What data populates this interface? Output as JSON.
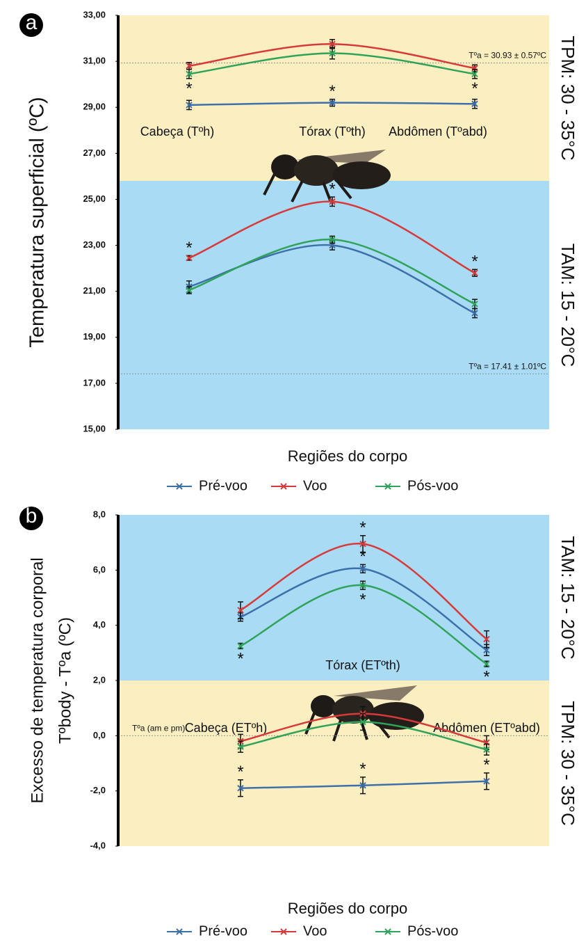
{
  "chart_data": [
    {
      "type": "line",
      "panel_label": "a",
      "ylabel": [
        "Temperatura superficial (ºC)"
      ],
      "xlabel": "Regiões do corpo",
      "categories": [
        "Cabeça (Tºh)",
        "Tórax (Tºth)",
        "Abdômen (Tºabd)"
      ],
      "ylim": [
        15,
        33
      ],
      "yticks": [
        {
          "value": 15,
          "label": "15,00"
        },
        {
          "value": 17,
          "label": "17,00"
        },
        {
          "value": 19,
          "label": "19,00"
        },
        {
          "value": 21,
          "label": "21,00"
        },
        {
          "value": 23,
          "label": "23,00"
        },
        {
          "value": 25,
          "label": "25,00"
        },
        {
          "value": 27,
          "label": "27,00"
        },
        {
          "value": 29,
          "label": "29,00"
        },
        {
          "value": 31,
          "label": "31,00"
        },
        {
          "value": 33,
          "label": "33,00"
        }
      ],
      "bands": [
        {
          "label": "TPM: 30 - 35°C",
          "range": [
            25.8,
            33
          ],
          "color": "#fbefc1"
        },
        {
          "label": "TAM: 15 - 20°C",
          "range": [
            15,
            25.8
          ],
          "color": "#a9dbf4"
        }
      ],
      "reference_lines": [
        {
          "label": "Tºa = 30.93 ± 0.57ºC",
          "value": 30.93
        },
        {
          "label": "Tºa = 17.41 ± 1.01ºC",
          "value": 17.41
        }
      ],
      "legend": "bottom",
      "series": [
        {
          "name": "Pré-voo",
          "color": "#3d6faa",
          "groups": [
            {
              "values": [
                29.1,
                29.2,
                29.15
              ],
              "errors": [
                0.2,
                0.15,
                0.2
              ],
              "sig": [
                null,
                "*",
                null
              ]
            },
            {
              "values": [
                21.2,
                23.0,
                20.05
              ],
              "errors": [
                0.25,
                0.2,
                0.2
              ],
              "sig": [
                null,
                null,
                null
              ]
            }
          ]
        },
        {
          "name": "Voo",
          "color": "#d63a3a",
          "groups": [
            {
              "values": [
                30.8,
                31.75,
                30.7
              ],
              "errors": [
                0.15,
                0.2,
                0.15
              ],
              "sig": [
                null,
                null,
                null
              ]
            },
            {
              "values": [
                22.45,
                24.9,
                21.8
              ],
              "errors": [
                0.1,
                0.2,
                0.15
              ],
              "sig": [
                "*",
                "*",
                "*"
              ]
            }
          ]
        },
        {
          "name": "Pós-voo",
          "color": "#2fa35a",
          "groups": [
            {
              "values": [
                30.45,
                31.35,
                30.45
              ],
              "errors": [
                0.2,
                0.25,
                0.2
              ],
              "sig": [
                "*",
                null,
                "*"
              ]
            },
            {
              "values": [
                21.05,
                23.25,
                20.45
              ],
              "errors": [
                0.15,
                0.15,
                0.2
              ],
              "sig": [
                null,
                null,
                null
              ]
            }
          ]
        }
      ]
    },
    {
      "type": "line",
      "panel_label": "b",
      "ylabel": [
        "Excesso de temperatura corporal",
        "Tºbody - Tºa (ºC)"
      ],
      "xlabel": "Regiões do corpo",
      "categories": [
        "Cabeça (ETºh)",
        "Tórax (ETºth)",
        "Abdômen (ETºabd)"
      ],
      "ylim": [
        -4,
        8
      ],
      "yticks": [
        {
          "value": -4,
          "label": "-4,0"
        },
        {
          "value": -2,
          "label": "-2,0"
        },
        {
          "value": 0,
          "label": "0,0"
        },
        {
          "value": 2,
          "label": "2,0"
        },
        {
          "value": 4,
          "label": "4,0"
        },
        {
          "value": 6,
          "label": "6,0"
        },
        {
          "value": 8,
          "label": "8,0"
        }
      ],
      "bands": [
        {
          "label": "TAM: 15 - 20°C",
          "range": [
            2,
            8
          ],
          "color": "#a9dbf4"
        },
        {
          "label": "TPM: 30 - 35°C",
          "range": [
            -4,
            2
          ],
          "color": "#fbefc1"
        }
      ],
      "reference_lines": [
        {
          "label": "Tºa (am e pm)",
          "value": 0
        }
      ],
      "legend": "bottom",
      "series": [
        {
          "name": "Pré-voo",
          "color": "#3d6faa",
          "groups": [
            {
              "values": [
                4.3,
                6.05,
                3.1
              ],
              "errors": [
                0.15,
                0.15,
                0.2
              ],
              "sig": [
                null,
                "*",
                null
              ]
            },
            {
              "values": [
                -1.9,
                -1.8,
                -1.65
              ],
              "errors": [
                0.3,
                0.3,
                0.3
              ],
              "sig": [
                "*",
                "*",
                "*"
              ]
            }
          ]
        },
        {
          "name": "Voo",
          "color": "#d63a3a",
          "groups": [
            {
              "values": [
                4.55,
                6.95,
                3.5
              ],
              "errors": [
                0.3,
                0.3,
                0.3
              ],
              "sig": [
                null,
                "*",
                null
              ]
            },
            {
              "values": [
                -0.2,
                0.8,
                -0.25
              ],
              "errors": [
                0.25,
                0.25,
                0.25
              ],
              "sig": [
                null,
                null,
                null
              ]
            }
          ]
        },
        {
          "name": "Pós-voo",
          "color": "#2fa35a",
          "groups": [
            {
              "values": [
                3.25,
                5.45,
                2.6
              ],
              "errors": [
                0.1,
                0.15,
                0.1
              ],
              "sig": [
                "*",
                "*",
                "*"
              ]
            },
            {
              "values": [
                -0.4,
                0.5,
                -0.5
              ],
              "errors": [
                0.2,
                0.3,
                0.2
              ],
              "sig": [
                null,
                null,
                null
              ]
            }
          ]
        }
      ]
    }
  ]
}
